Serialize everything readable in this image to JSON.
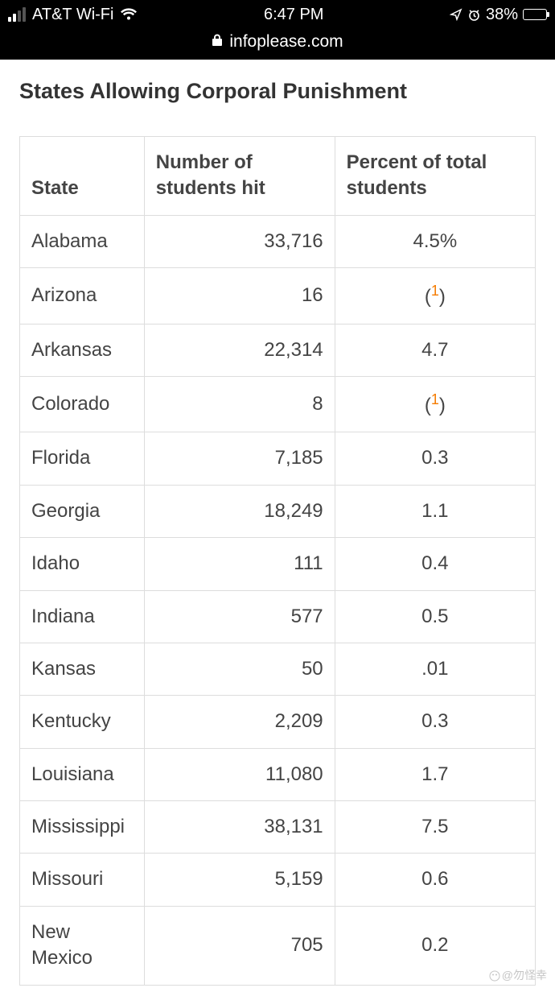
{
  "status_bar": {
    "carrier": "AT&T Wi-Fi",
    "time": "6:47 PM",
    "battery_percent_label": "38%",
    "battery_fill_percent": 38,
    "signal_strength": 2
  },
  "browser": {
    "url_display": "infoplease.com",
    "secure": true
  },
  "page": {
    "title": "States Allowing Corporal Punishment"
  },
  "table": {
    "columns": [
      "State",
      "Number of students hit",
      "Percent of total students"
    ],
    "column_align": [
      "left",
      "right",
      "center"
    ],
    "border_color": "#dddddd",
    "text_color": "#444444",
    "footnote_sup_color": "#f57c00",
    "rows": [
      {
        "state": "Alabama",
        "number": "33,716",
        "percent": "4.5%",
        "footnote": false
      },
      {
        "state": "Arizona",
        "number": "16",
        "percent": "1",
        "footnote": true
      },
      {
        "state": "Arkansas",
        "number": "22,314",
        "percent": "4.7",
        "footnote": false
      },
      {
        "state": "Colorado",
        "number": "8",
        "percent": "1",
        "footnote": true
      },
      {
        "state": "Florida",
        "number": "7,185",
        "percent": "0.3",
        "footnote": false
      },
      {
        "state": "Georgia",
        "number": "18,249",
        "percent": "1.1",
        "footnote": false
      },
      {
        "state": "Idaho",
        "number": "111",
        "percent": "0.4",
        "footnote": false
      },
      {
        "state": "Indiana",
        "number": "577",
        "percent": "0.5",
        "footnote": false
      },
      {
        "state": "Kansas",
        "number": "50",
        "percent": ".01",
        "footnote": false
      },
      {
        "state": "Kentucky",
        "number": "2,209",
        "percent": "0.3",
        "footnote": false
      },
      {
        "state": "Louisiana",
        "number": "11,080",
        "percent": "1.7",
        "footnote": false
      },
      {
        "state": "Mississippi",
        "number": "38,131",
        "percent": "7.5",
        "footnote": false
      },
      {
        "state": "Missouri",
        "number": "5,159",
        "percent": "0.6",
        "footnote": false
      },
      {
        "state": "New Mexico",
        "number": "705",
        "percent": "0.2",
        "footnote": false
      }
    ]
  },
  "watermark": "@勿怪幸"
}
